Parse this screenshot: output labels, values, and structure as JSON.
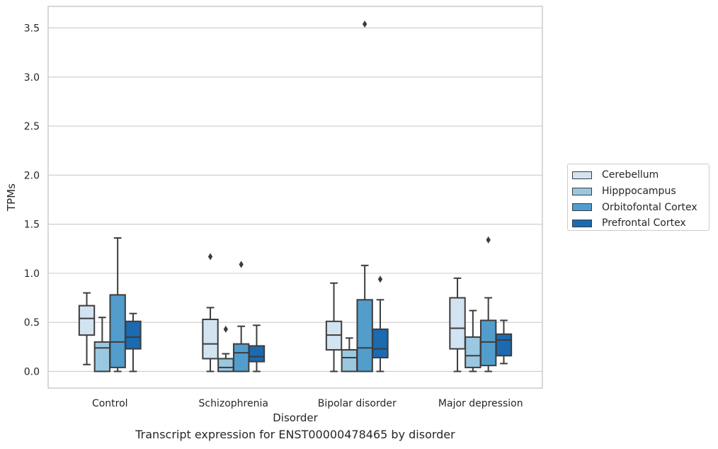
{
  "caption": "Transcript expression for ENST00000478465 by disorder",
  "chart_data": {
    "type": "box",
    "xlabel": "Disorder",
    "ylabel": "TPMs",
    "ylim": [
      -0.17,
      3.72
    ],
    "yticks": [
      "0.0",
      "0.5",
      "1.0",
      "1.5",
      "2.0",
      "2.5",
      "3.0",
      "3.5"
    ],
    "categories": [
      "Control",
      "Schizophrenia",
      "Bipolar disorder",
      "Major depression"
    ],
    "grid": "horizontal",
    "legend_position": "right",
    "series": [
      {
        "name": "Cerebellum",
        "color": "#d2e3f2",
        "boxes": [
          {
            "whislo": 0.07,
            "q1": 0.37,
            "med": 0.54,
            "q3": 0.67,
            "whishi": 0.8,
            "fliers": []
          },
          {
            "whislo": 0.0,
            "q1": 0.13,
            "med": 0.28,
            "q3": 0.53,
            "whishi": 0.65,
            "fliers": [
              1.17
            ]
          },
          {
            "whislo": 0.0,
            "q1": 0.22,
            "med": 0.37,
            "q3": 0.51,
            "whishi": 0.9,
            "fliers": []
          },
          {
            "whislo": 0.0,
            "q1": 0.23,
            "med": 0.44,
            "q3": 0.75,
            "whishi": 0.95,
            "fliers": []
          }
        ]
      },
      {
        "name": "Hipppocampus",
        "color": "#9ac8e0",
        "boxes": [
          {
            "whislo": 0.0,
            "q1": 0.0,
            "med": 0.24,
            "q3": 0.3,
            "whishi": 0.55,
            "fliers": []
          },
          {
            "whislo": 0.0,
            "q1": 0.0,
            "med": 0.04,
            "q3": 0.13,
            "whishi": 0.18,
            "fliers": [
              0.43
            ]
          },
          {
            "whislo": 0.0,
            "q1": 0.0,
            "med": 0.14,
            "q3": 0.22,
            "whishi": 0.34,
            "fliers": []
          },
          {
            "whislo": 0.0,
            "q1": 0.04,
            "med": 0.16,
            "q3": 0.35,
            "whishi": 0.62,
            "fliers": []
          }
        ]
      },
      {
        "name": "Orbitofontal Cortex",
        "color": "#529dcc",
        "boxes": [
          {
            "whislo": 0.0,
            "q1": 0.04,
            "med": 0.3,
            "q3": 0.78,
            "whishi": 1.36,
            "fliers": []
          },
          {
            "whislo": 0.0,
            "q1": 0.0,
            "med": 0.19,
            "q3": 0.28,
            "whishi": 0.46,
            "fliers": [
              1.09
            ]
          },
          {
            "whislo": 0.0,
            "q1": 0.0,
            "med": 0.24,
            "q3": 0.73,
            "whishi": 1.08,
            "fliers": [
              3.54
            ]
          },
          {
            "whislo": 0.0,
            "q1": 0.06,
            "med": 0.3,
            "q3": 0.52,
            "whishi": 0.75,
            "fliers": [
              1.34
            ]
          }
        ]
      },
      {
        "name": "Prefrontal Cortex",
        "color": "#1c6aaf",
        "boxes": [
          {
            "whislo": 0.0,
            "q1": 0.23,
            "med": 0.35,
            "q3": 0.51,
            "whishi": 0.59,
            "fliers": []
          },
          {
            "whislo": 0.0,
            "q1": 0.1,
            "med": 0.15,
            "q3": 0.26,
            "whishi": 0.47,
            "fliers": []
          },
          {
            "whislo": 0.0,
            "q1": 0.14,
            "med": 0.23,
            "q3": 0.43,
            "whishi": 0.73,
            "fliers": [
              0.94
            ]
          },
          {
            "whislo": 0.08,
            "q1": 0.16,
            "med": 0.32,
            "q3": 0.38,
            "whishi": 0.52,
            "fliers": []
          }
        ]
      }
    ]
  }
}
